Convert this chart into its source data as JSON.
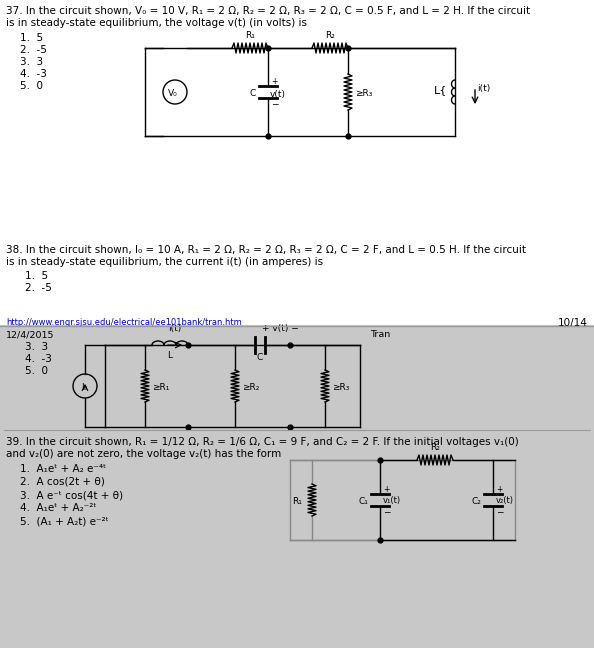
{
  "fig_w": 5.94,
  "fig_h": 6.48,
  "dpi": 100,
  "bg_white": "#ffffff",
  "bg_gray": "#c8c8c8",
  "black": "#000000",
  "blue_link": "#0000cc",
  "separator_color": "#aaaaaa",
  "fs_main": 7.5,
  "fs_small": 6.8,
  "fs_circuit": 6.5,
  "q37_line1": "37. In the circuit shown, V₀ = 10 V, R₁ = 2 Ω, R₂ = 2 Ω, R₃ = 2 Ω, C = 0.5 F, and L = 2 H. If the circuit",
  "q37_line2": "is in steady-state equilibrium, the voltage v(t) (in volts) is",
  "q37_answers": [
    "1.  5",
    "2.  -5",
    "3.  3",
    "4.  -3",
    "5.  0"
  ],
  "q38_line1": "38. In the circuit shown, I₀ = 10 A, R₁ = 2 Ω, R₂ = 2 Ω, R₃ = 2 Ω, C = 2 F, and L = 0.5 H. If the circuit",
  "q38_line2": "is in steady-state equilibrium, the current i(t) (in amperes) is",
  "q38_answers_top": [
    "1.  5",
    "2.  -5"
  ],
  "q38_answers_bot": [
    "3.  3",
    "4.  -3",
    "5.  0"
  ],
  "footer_url": "http://www.engr.sjsu.edu/electrical/ee101bank/tran.htm",
  "footer_page": "10/14",
  "date": "12/4/2015",
  "tran_label": "Tran",
  "q39_line1": "39. In the circuit shown, R₁ = 1/12 Ω, R₂ = 1/6 Ω, C₁ = 9 F, and C₂ = 2 F. If the initial voltages v₁(0)",
  "q39_line2": "and v₂(0) are not zero, the voltage v₂(t) has the form",
  "q39_answers": [
    "1.  A₁eᵗ + A₂ e⁻⁴ᵗ",
    "2.  A cos(2t + θ)",
    "3.  A e⁻ᵗ cos(4t + θ)",
    "4.  A₁eᵗ + A₂⁻²ᵗ",
    "5.  (A₁ + A₂t) e⁻²ᵗ"
  ]
}
